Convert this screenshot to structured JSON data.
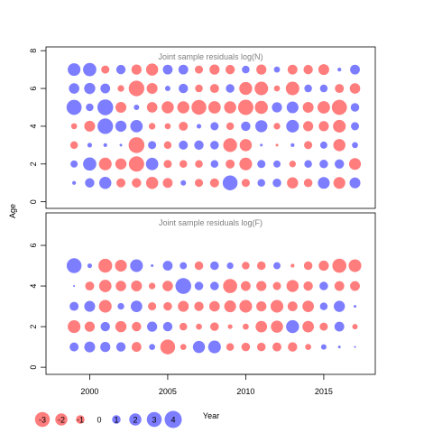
{
  "chart_data": {
    "type": "scatter",
    "y_axis_label": "Age",
    "x_axis_label": "Year",
    "x_ticks": [
      2000,
      2005,
      2010,
      2015
    ],
    "y_ticks": [
      0,
      2,
      4,
      6,
      8
    ],
    "xlim": [
      1997.2,
      2018.3
    ],
    "colors": {
      "positive": "#6666ff",
      "negative": "#ff6666"
    },
    "years": [
      1999,
      2000,
      2001,
      2002,
      2003,
      2004,
      2005,
      2006,
      2007,
      2008,
      2009,
      2010,
      2011,
      2012,
      2013,
      2014,
      2015,
      2016,
      2017
    ],
    "panels": [
      {
        "title": "Joint sample residuals log(N)",
        "ylim": [
          -0.35,
          8.2
        ],
        "ages": [
          1,
          2,
          3,
          4,
          5,
          6,
          7
        ],
        "residuals": [
          [
            0.2,
            1.2,
            2.0,
            -1.1,
            -1.2,
            -2.0,
            -1.3,
            0.4,
            -0.9,
            -1.1,
            3.0,
            -0.9,
            0.8,
            1.0,
            -1.7,
            -1.0,
            1.9,
            -1.9,
            1.6
          ],
          [
            0.7,
            2.4,
            -2.2,
            -1.7,
            -3.2,
            2.1,
            -0.9,
            -0.8,
            -0.8,
            0.8,
            -1.1,
            -2.2,
            0.9,
            0.7,
            -0.6,
            0.8,
            1.0,
            1.2,
            -1.9
          ],
          [
            -0.8,
            0.3,
            0.2,
            0.1,
            -3.4,
            0.9,
            -0.8,
            1.1,
            1.2,
            1.0,
            -2.6,
            -2.0,
            0.1,
            -0.1,
            0.2,
            -0.9,
            0.7,
            -2.0,
            0.5
          ],
          [
            -0.5,
            -1.6,
            3.3,
            1.7,
            2.1,
            -0.6,
            -0.5,
            -1.1,
            0.3,
            0.9,
            -0.8,
            1.2,
            2.0,
            -0.6,
            2.2,
            -1.4,
            -1.4,
            -2.2,
            0.9
          ],
          [
            3.1,
            0.8,
            3.4,
            -1.6,
            0.4,
            -1.5,
            -2.0,
            -2.0,
            -3.0,
            -2.1,
            -2.0,
            -3.2,
            -2.3,
            1.4,
            1.9,
            -1.6,
            -2.1,
            -3.1,
            1.0
          ],
          [
            1.5,
            1.7,
            1.3,
            -0.6,
            -3.3,
            -1.6,
            0.4,
            1.2,
            -0.8,
            -1.1,
            1.0,
            -2.3,
            -2.5,
            -0.5,
            -2.5,
            0.8,
            0.8,
            -1.1,
            -1.5
          ],
          [
            2.2,
            2.4,
            -0.9,
            1.2,
            -1.4,
            -2.0,
            1.3,
            1.3,
            -0.9,
            -1.4,
            -1.2,
            0.8,
            -1.4,
            0.5,
            -1.3,
            -1.2,
            -1.6,
            0.2,
            1.3
          ]
        ]
      },
      {
        "title": "Joint sample residuals log(F)",
        "ylim": [
          -0.35,
          7.6
        ],
        "ages": [
          1,
          2,
          3,
          4,
          5
        ],
        "residuals": [
          [
            1.1,
            1.6,
            1.4,
            1.2,
            -1.3,
            0.5,
            -3.0,
            -0.5,
            2.0,
            2.2,
            -0.8,
            -1.0,
            -1.0,
            -1.1,
            -1.2,
            -0.5,
            0.4,
            0.1,
            0.05
          ],
          [
            -2.2,
            -1.4,
            1.2,
            -1.7,
            -1.2,
            1.4,
            1.2,
            -0.8,
            -0.5,
            -1.0,
            -0.3,
            -0.5,
            -1.8,
            -2.0,
            2.3,
            -1.8,
            -0.9,
            1.3,
            -0.4
          ],
          [
            1.1,
            1.6,
            -2.2,
            0.6,
            1.8,
            -0.9,
            -1.0,
            -1.6,
            -1.2,
            -1.5,
            -1.9,
            -2.2,
            -1.4,
            -2.2,
            -1.3,
            -1.8,
            0.8,
            1.7,
            0.1
          ],
          [
            0.05,
            -1.1,
            -2.1,
            -1.5,
            -1.6,
            -0.6,
            -1.5,
            3.4,
            1.0,
            1.0,
            -2.7,
            -1.3,
            -1.4,
            -0.9,
            -2.0,
            -1.2,
            1.0,
            -1.3,
            -1.3
          ],
          [
            3.0,
            0.3,
            -2.6,
            -1.9,
            2.2,
            0.1,
            1.3,
            0.7,
            -1.0,
            1.0,
            0.6,
            -0.8,
            -1.0,
            0.7,
            -0.2,
            -1.0,
            -1.4,
            -2.7,
            -2.2
          ]
        ]
      }
    ],
    "legend": {
      "values": [
        -3,
        -2,
        -1,
        0,
        1,
        2,
        3,
        4
      ],
      "labels": [
        "-3",
        "-2",
        "-1",
        "0",
        "1",
        "2",
        "3",
        "4"
      ]
    }
  }
}
